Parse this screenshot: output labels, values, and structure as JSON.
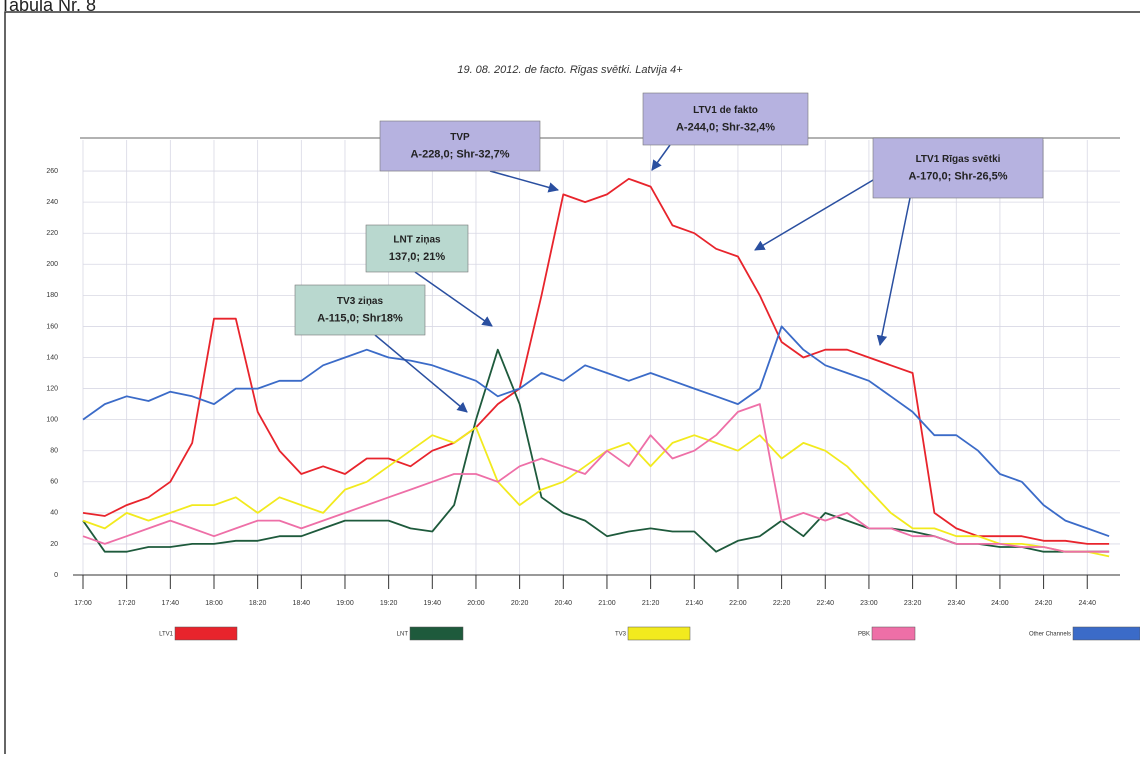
{
  "page_label": "Tabula Nr. 8",
  "chart_data": {
    "type": "line",
    "title": "19. 08. 2012. de facto. Rīgas svētki. Latvija 4+",
    "x": [
      0,
      10,
      20,
      30,
      40,
      50,
      60,
      70,
      80,
      90,
      100,
      110,
      120,
      130,
      140,
      150,
      160,
      170,
      180,
      190,
      200,
      210,
      220,
      230,
      240,
      250,
      260,
      270,
      280,
      290,
      300,
      310,
      320,
      330,
      340,
      350,
      360,
      370,
      380,
      390,
      400,
      410,
      420,
      430,
      440,
      450,
      460,
      470
    ],
    "xlim": [
      0,
      475
    ],
    "xticks": [
      {
        "value": 0,
        "label": "17:00"
      },
      {
        "value": 20,
        "label": "17:20"
      },
      {
        "value": 40,
        "label": "17:40"
      },
      {
        "value": 60,
        "label": "18:00"
      },
      {
        "value": 80,
        "label": "18:20"
      },
      {
        "value": 100,
        "label": "18:40"
      },
      {
        "value": 120,
        "label": "19:00"
      },
      {
        "value": 140,
        "label": "19:20"
      },
      {
        "value": 160,
        "label": "19:40"
      },
      {
        "value": 180,
        "label": "20:00"
      },
      {
        "value": 200,
        "label": "20:20"
      },
      {
        "value": 220,
        "label": "20:40"
      },
      {
        "value": 240,
        "label": "21:00"
      },
      {
        "value": 260,
        "label": "21:20"
      },
      {
        "value": 280,
        "label": "21:40"
      },
      {
        "value": 300,
        "label": "22:00"
      },
      {
        "value": 320,
        "label": "22:20"
      },
      {
        "value": 340,
        "label": "22:40"
      },
      {
        "value": 360,
        "label": "23:00"
      },
      {
        "value": 380,
        "label": "23:20"
      },
      {
        "value": 400,
        "label": "23:40"
      },
      {
        "value": 420,
        "label": "24:00"
      },
      {
        "value": 440,
        "label": "24:20"
      },
      {
        "value": 460,
        "label": "24:40"
      }
    ],
    "ylim": [
      0,
      280
    ],
    "yticks": [
      0,
      20,
      40,
      60,
      80,
      100,
      120,
      140,
      160,
      180,
      200,
      220,
      240,
      260
    ],
    "grid": true,
    "series": [
      {
        "name": "LTV1",
        "color": "#e8242c",
        "values": [
          40,
          38,
          45,
          50,
          60,
          85,
          165,
          165,
          105,
          80,
          65,
          70,
          65,
          75,
          75,
          70,
          80,
          85,
          95,
          110,
          120,
          180,
          245,
          240,
          245,
          255,
          250,
          225,
          220,
          210,
          205,
          180,
          150,
          140,
          145,
          145,
          140,
          135,
          130,
          40,
          30,
          25,
          25,
          25,
          22,
          22,
          20,
          20
        ]
      },
      {
        "name": "LNT",
        "color": "#1e5a3c",
        "values": [
          35,
          15,
          15,
          18,
          18,
          20,
          20,
          22,
          22,
          25,
          25,
          30,
          35,
          35,
          35,
          30,
          28,
          45,
          100,
          145,
          110,
          50,
          40,
          35,
          25,
          28,
          30,
          28,
          28,
          15,
          22,
          25,
          35,
          25,
          40,
          35,
          30,
          30,
          28,
          25,
          20,
          20,
          18,
          18,
          15,
          15,
          15,
          15
        ]
      },
      {
        "name": "TV3",
        "color": "#f2ea1e",
        "values": [
          35,
          30,
          40,
          35,
          40,
          45,
          45,
          50,
          40,
          50,
          45,
          40,
          55,
          60,
          70,
          80,
          90,
          85,
          95,
          60,
          45,
          55,
          60,
          70,
          80,
          85,
          70,
          85,
          90,
          85,
          80,
          90,
          75,
          85,
          80,
          70,
          55,
          40,
          30,
          30,
          25,
          25,
          20,
          20,
          18,
          15,
          15,
          12
        ]
      },
      {
        "name": "PBK",
        "color": "#ee6fa7",
        "values": [
          25,
          20,
          25,
          30,
          35,
          30,
          25,
          30,
          35,
          35,
          30,
          35,
          40,
          45,
          50,
          55,
          60,
          65,
          65,
          60,
          70,
          75,
          70,
          65,
          80,
          70,
          90,
          75,
          80,
          90,
          105,
          110,
          35,
          40,
          35,
          40,
          30,
          30,
          25,
          25,
          20,
          20,
          20,
          18,
          18,
          15,
          15,
          15
        ]
      },
      {
        "name": "Other Channels",
        "color": "#3b6bc8",
        "values": [
          100,
          110,
          115,
          112,
          118,
          115,
          110,
          120,
          120,
          125,
          125,
          135,
          140,
          145,
          140,
          138,
          135,
          130,
          125,
          115,
          120,
          130,
          125,
          135,
          130,
          125,
          130,
          125,
          120,
          115,
          110,
          120,
          160,
          145,
          135,
          130,
          125,
          115,
          105,
          90,
          90,
          80,
          65,
          60,
          45,
          35,
          30,
          25
        ]
      }
    ],
    "annotations": [
      {
        "lines": [
          "TVP",
          "A-228,0; Shr-32,7%"
        ]
      },
      {
        "lines": [
          "LTV1 de fakto",
          "A-244,0; Shr-32,4%"
        ]
      },
      {
        "lines": [
          "LTV1 Rīgas svētki",
          "A-170,0; Shr-26,5%"
        ]
      },
      {
        "lines": [
          "LNT ziņas",
          "137,0; 21%"
        ]
      },
      {
        "lines": [
          "TV3 ziņas",
          "A-115,0; Shr18%"
        ]
      }
    ]
  }
}
